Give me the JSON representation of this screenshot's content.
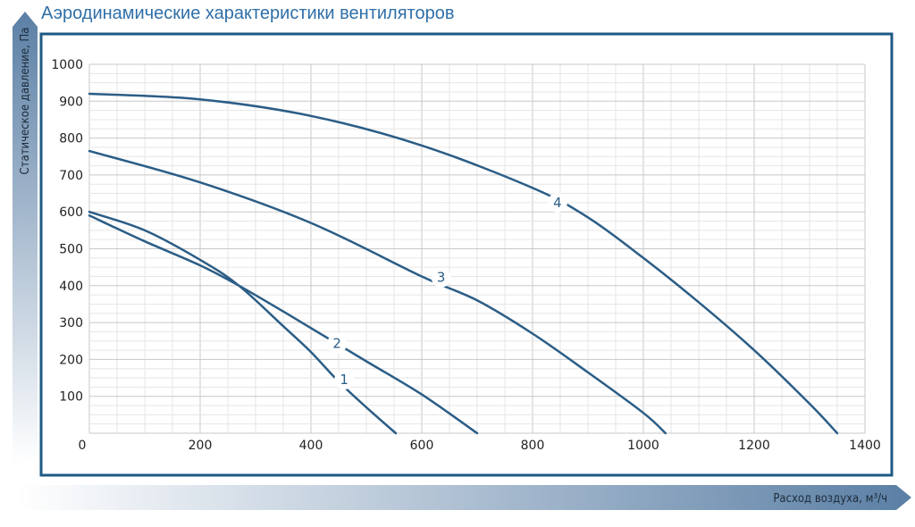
{
  "title": "Аэродинамические характеристики вентиляторов",
  "colors": {
    "title": "#2f6fa8",
    "frame": "#1d5a84",
    "curve": "#2b5d86",
    "grid_major": "#c8c8c8",
    "grid_minor": "#e6e6e6",
    "axis_arrow": "#5b7fa5"
  },
  "chart_data": {
    "type": "line",
    "xlabel": "Расход воздуха, м³/ч",
    "ylabel": "Статическое давление, Па",
    "xlim": [
      0,
      1400
    ],
    "ylim": [
      0,
      1000
    ],
    "x_ticks": [
      0,
      200,
      400,
      600,
      800,
      1000,
      1200,
      1400
    ],
    "y_ticks": [
      100,
      200,
      300,
      400,
      500,
      600,
      700,
      800,
      900,
      1000
    ],
    "grid": true,
    "legend": "none",
    "series": [
      {
        "name": "1",
        "points": [
          [
            0,
            600
          ],
          [
            100,
            550
          ],
          [
            200,
            470
          ],
          [
            270,
            400
          ],
          [
            350,
            290
          ],
          [
            400,
            220
          ],
          [
            450,
            140
          ],
          [
            500,
            70
          ],
          [
            553,
            0
          ]
        ]
      },
      {
        "name": "2",
        "points": [
          [
            0,
            590
          ],
          [
            100,
            520
          ],
          [
            200,
            455
          ],
          [
            270,
            400
          ],
          [
            350,
            330
          ],
          [
            400,
            285
          ],
          [
            500,
            195
          ],
          [
            600,
            105
          ],
          [
            700,
            0
          ]
        ]
      },
      {
        "name": "3",
        "points": [
          [
            0,
            765
          ],
          [
            200,
            680
          ],
          [
            400,
            570
          ],
          [
            600,
            425
          ],
          [
            700,
            360
          ],
          [
            800,
            270
          ],
          [
            900,
            165
          ],
          [
            1000,
            55
          ],
          [
            1040,
            0
          ]
        ]
      },
      {
        "name": "4",
        "points": [
          [
            0,
            920
          ],
          [
            200,
            905
          ],
          [
            400,
            860
          ],
          [
            600,
            780
          ],
          [
            800,
            665
          ],
          [
            900,
            585
          ],
          [
            1000,
            475
          ],
          [
            1100,
            355
          ],
          [
            1200,
            225
          ],
          [
            1300,
            80
          ],
          [
            1350,
            0
          ]
        ]
      }
    ],
    "annotations": [
      {
        "text": "1",
        "x": 460,
        "y": 145
      },
      {
        "text": "2",
        "x": 447,
        "y": 243
      },
      {
        "text": "3",
        "x": 635,
        "y": 422
      },
      {
        "text": "4",
        "x": 845,
        "y": 625
      }
    ]
  }
}
